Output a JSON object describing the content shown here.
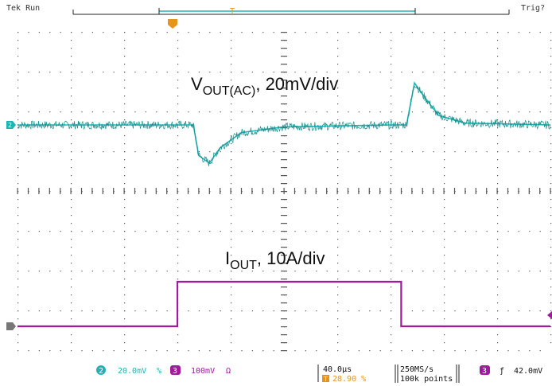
{
  "header": {
    "status_text": "Tek Run",
    "trigger_text": "Trig?",
    "trigger_marker": "T"
  },
  "chart_data": {
    "type": "line",
    "title": "",
    "xlabel": "",
    "ylabel": "",
    "grid": true,
    "x_divisions": 10,
    "y_divisions": 8,
    "time_per_div_us": 40.0,
    "series": [
      {
        "channel": "2",
        "color": "#1fb3b3",
        "label_main": "V",
        "label_sub": "OUT(AC)",
        "label_rest": ", 20mV/div",
        "points": [
          [
            0,
            0
          ],
          [
            3.3,
            0
          ],
          [
            3.4,
            -0.8
          ],
          [
            3.6,
            -1.0
          ],
          [
            3.8,
            -0.6
          ],
          [
            4.2,
            -0.2
          ],
          [
            5.0,
            -0.05
          ],
          [
            7.0,
            0
          ],
          [
            7.3,
            0
          ],
          [
            7.45,
            1.1
          ],
          [
            7.6,
            0.8
          ],
          [
            7.9,
            0.25
          ],
          [
            8.4,
            0.05
          ],
          [
            10,
            0
          ]
        ]
      },
      {
        "channel": "3",
        "color": "#a0199f",
        "label_main": "I",
        "label_sub": "OUT",
        "label_rest": ", 10A/div",
        "points": [
          [
            0,
            0
          ],
          [
            3.0,
            0
          ],
          [
            3.0,
            1.0
          ],
          [
            7.2,
            1.0
          ],
          [
            7.2,
            0
          ],
          [
            10,
            0
          ]
        ]
      }
    ]
  },
  "status_bar": {
    "ch2_num": "2",
    "ch2_scale": "20.0mV",
    "ch2_suffix": "%",
    "ch3_num": "3",
    "ch3_scale": "100mV",
    "ch3_suffix": "Ω",
    "timebase": "40.0µs",
    "trigger_pos_marker": "T",
    "trigger_pos": "28.90 %",
    "sample_rate": "250MS/s",
    "record_length": "100k points",
    "trig_num": "3",
    "trig_slope": "ƒ",
    "trig_level": "42.0mV"
  },
  "colors": {
    "ch2": "#1fb3b3",
    "ch3": "#a0199f",
    "trigger": "#e8941a",
    "grid": "#555555"
  }
}
